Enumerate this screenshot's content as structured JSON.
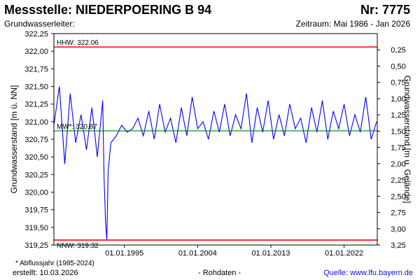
{
  "header": {
    "title": "Messstelle: NIEDERPOERING B 94",
    "number": "Nr: 7775",
    "aquifer": "Grundwasserleiter:",
    "period": "Zeitraum: Mai 1986 - Jan 2026"
  },
  "footer": {
    "footnote": "* Abflussjahr (1985-2024)",
    "created": "erstellt:  10.03.2026",
    "raw_data": "- Rohdaten -",
    "source": "Quelle:  www.lfu.bayern.de"
  },
  "colors": {
    "series": "#0000ff",
    "reference_lines": "#ff0000",
    "mean_line": "#008000",
    "frame": "#000000"
  },
  "chart_data": {
    "type": "line",
    "ylabel_left": "Grundwasserstand [m ü. NN]",
    "ylabel_right": "Grundwasserstand [m u. Gelände]",
    "ylim_left": [
      319.25,
      322.25
    ],
    "ylim_right": [
      0,
      3.25
    ],
    "left_ticks": [
      "322,25",
      "322,00",
      "321,75",
      "321,50",
      "321,25",
      "321,00",
      "320,75",
      "320,50",
      "320,25",
      "320,00",
      "319,75",
      "319,50",
      "319,25"
    ],
    "right_ticks": [
      "0,25",
      "0,50",
      "0,75",
      "1,00",
      "1,25",
      "1,50",
      "1,75",
      "2,00",
      "2,25",
      "2,50",
      "2,75",
      "3,00",
      "3,25"
    ],
    "x_ticks": [
      "01.01.1995",
      "01.01.2004",
      "01.01.2013",
      "01.01.2022"
    ],
    "xlim": [
      "1986-05-01",
      "2026-01-31"
    ],
    "grid": false,
    "reference_lines": [
      {
        "label": "HHW: 322.06",
        "value": 322.06
      },
      {
        "label": "MW*: 320.87",
        "value": 320.87
      },
      {
        "label": "NNW: 319.32",
        "value": 319.32
      }
    ],
    "series": [
      {
        "x": [
          "1986-05",
          "1987-01",
          "1987-09",
          "1988-05",
          "1989-01",
          "1989-09",
          "1990-05",
          "1991-01",
          "1991-09",
          "1992-05",
          "1992-07",
          "1992-09",
          "1992-11",
          "1993-01",
          "1993-05",
          "1994-01",
          "1994-09",
          "1995-05",
          "1996-01",
          "1996-09",
          "1997-05",
          "1998-01",
          "1998-09",
          "1999-05",
          "2000-01",
          "2000-09",
          "2001-05",
          "2002-01",
          "2002-09",
          "2003-05",
          "2004-01",
          "2004-09",
          "2005-05",
          "2006-01",
          "2006-09",
          "2007-05",
          "2008-01",
          "2008-09",
          "2009-05",
          "2010-01",
          "2010-09",
          "2011-05",
          "2012-01",
          "2012-09",
          "2013-05",
          "2014-01",
          "2014-09",
          "2015-05",
          "2016-01",
          "2016-09",
          "2017-05",
          "2018-01",
          "2018-09",
          "2019-05",
          "2020-01",
          "2020-09",
          "2021-05",
          "2022-01",
          "2022-09",
          "2023-05",
          "2024-01",
          "2024-09",
          "2025-05",
          "2026-01"
        ],
        "y": [
          320.95,
          321.5,
          320.4,
          321.4,
          320.7,
          321.1,
          320.6,
          321.2,
          320.5,
          321.3,
          320.2,
          319.6,
          319.32,
          320.3,
          320.7,
          320.8,
          320.95,
          320.85,
          320.9,
          321.05,
          320.8,
          321.15,
          320.75,
          321.25,
          320.85,
          321.05,
          320.7,
          321.2,
          320.8,
          321.35,
          320.9,
          321.0,
          320.75,
          321.15,
          320.85,
          321.25,
          320.8,
          321.1,
          320.9,
          321.4,
          320.7,
          321.2,
          320.85,
          321.3,
          320.75,
          321.1,
          320.8,
          321.25,
          320.9,
          321.05,
          320.7,
          321.2,
          320.85,
          321.3,
          320.75,
          321.15,
          320.9,
          321.25,
          320.8,
          321.1,
          320.85,
          321.35,
          320.75,
          321.0
        ]
      }
    ]
  }
}
